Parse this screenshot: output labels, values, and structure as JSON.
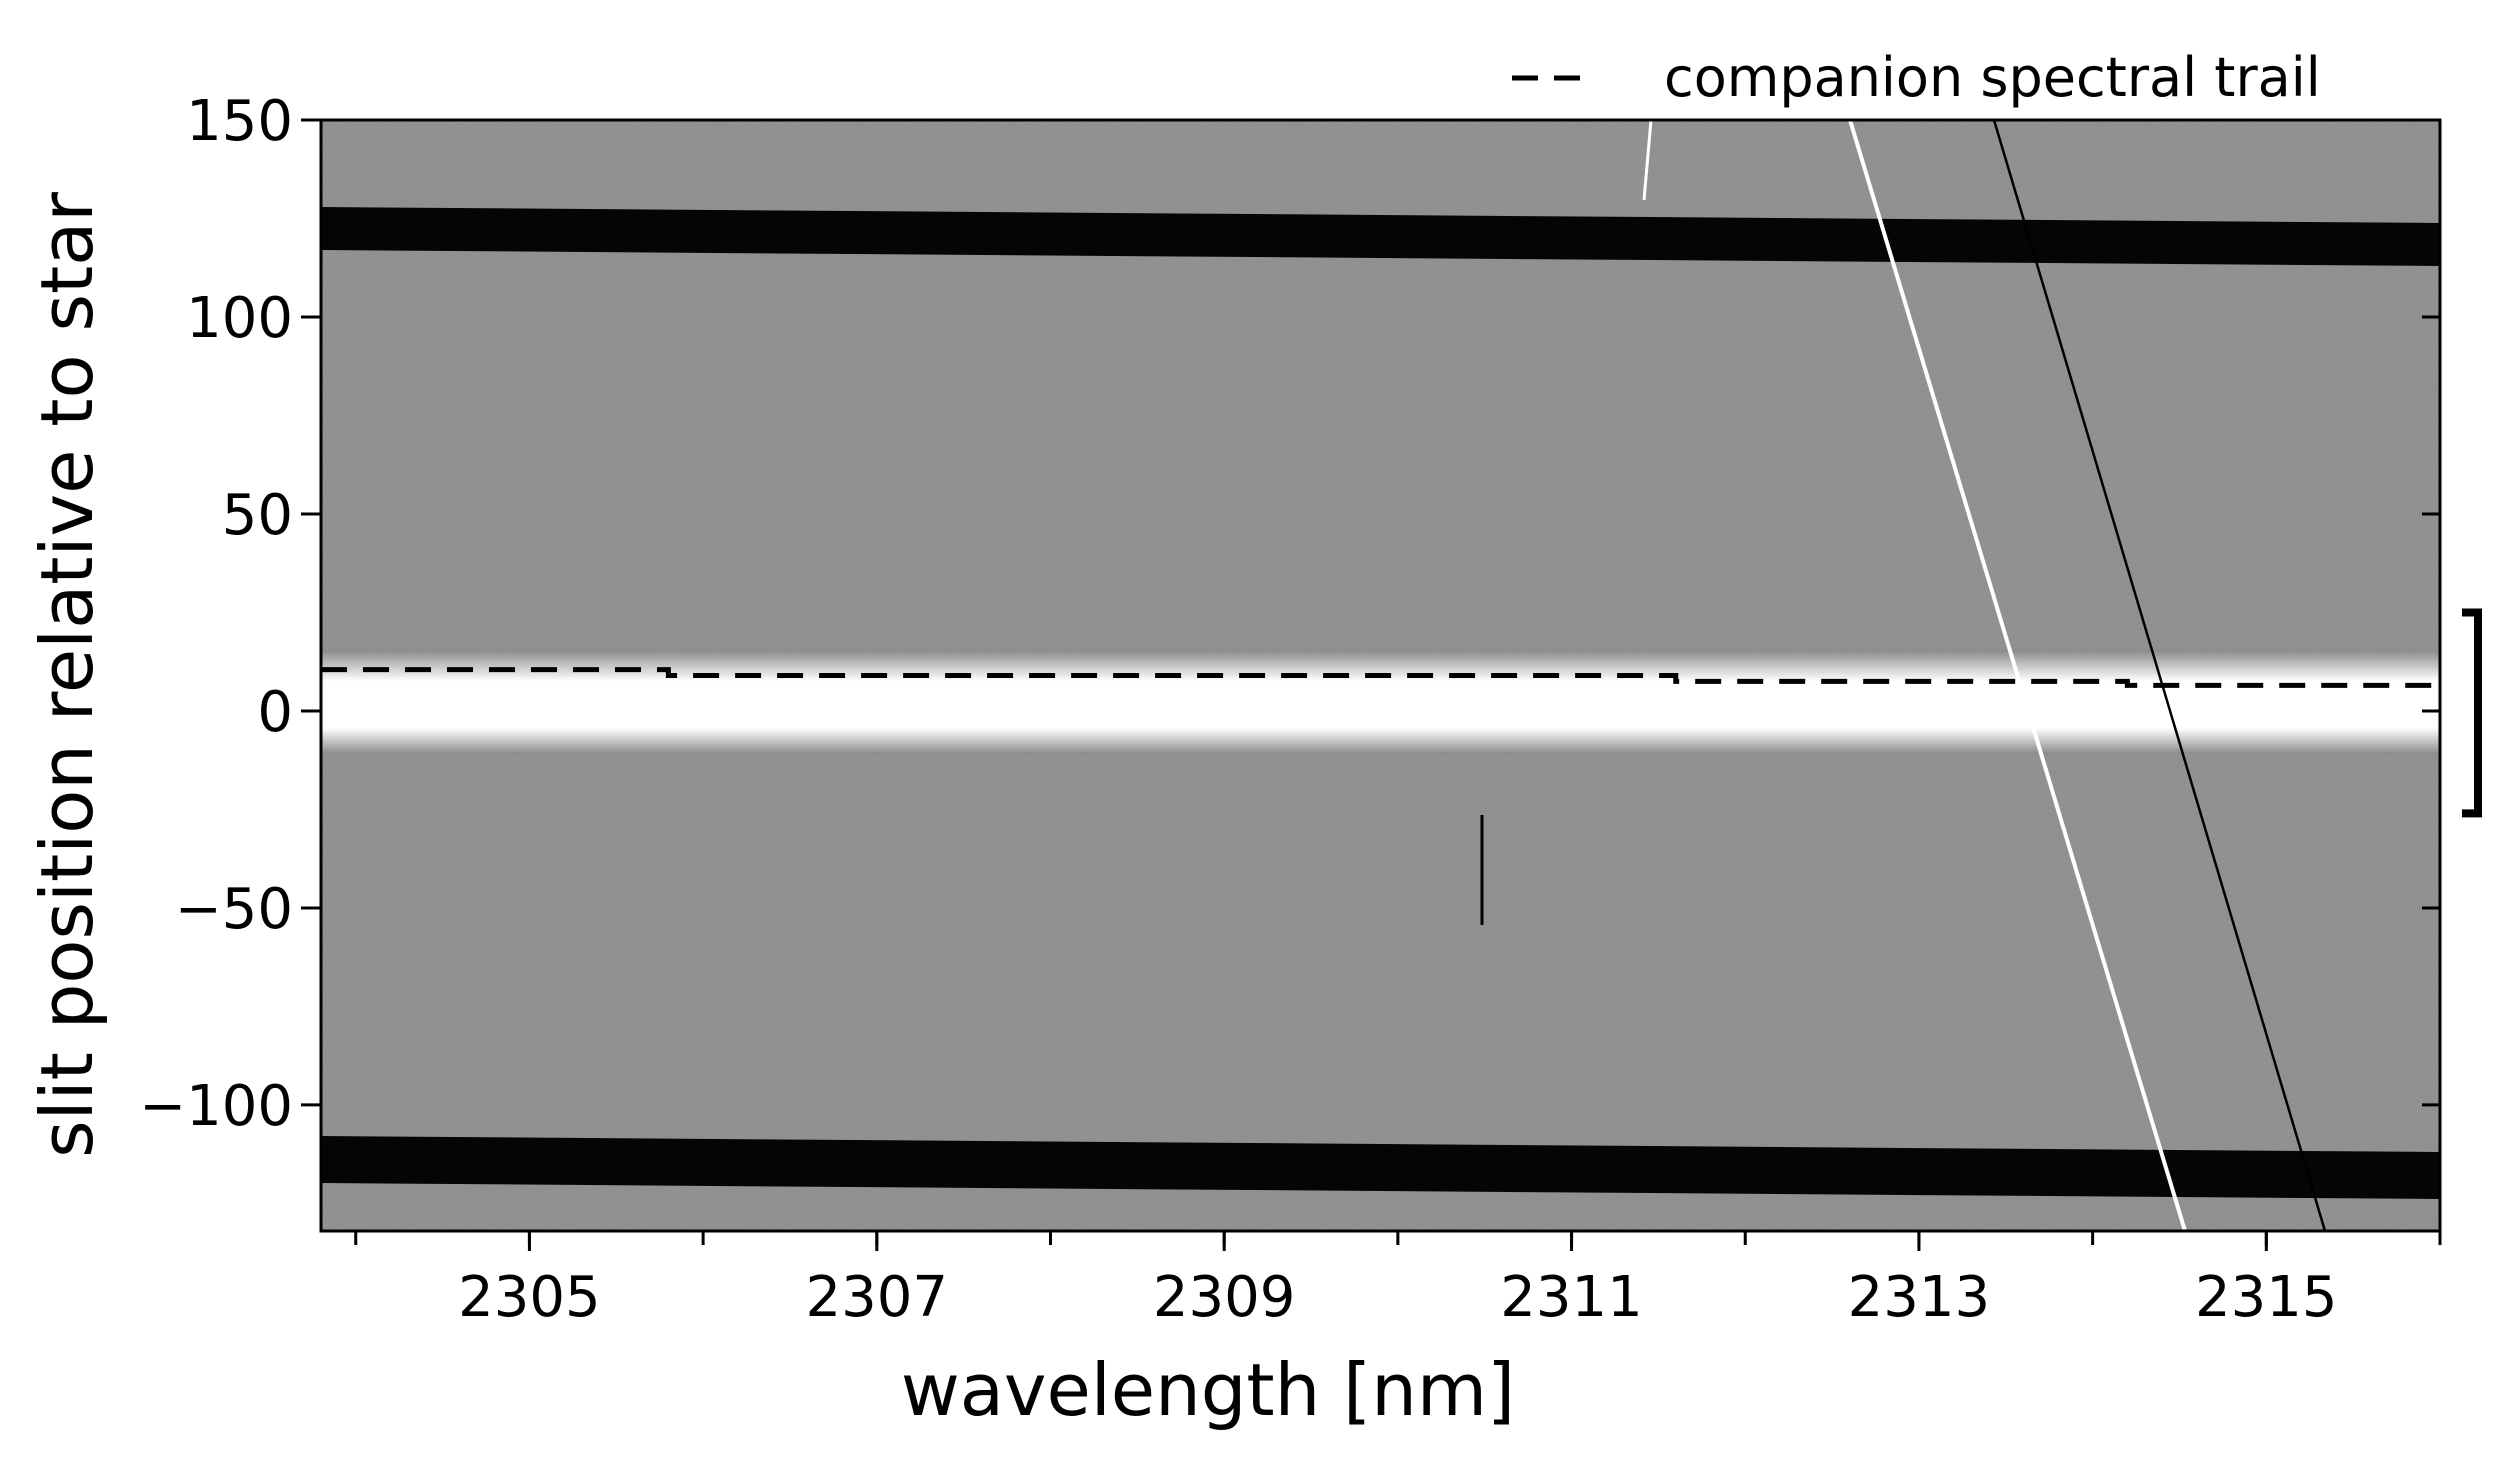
{
  "chart_data": {
    "type": "line",
    "xlabel": "wavelength [nm]",
    "ylabel": "slit position relative to star",
    "xlim": [
      2303.8,
      2316.0
    ],
    "ylim": [
      -132,
      150
    ],
    "xticks": [
      2305,
      2307,
      2309,
      2311,
      2313,
      2315
    ],
    "xminorticks": [
      2304,
      2305,
      2306,
      2307,
      2308,
      2309,
      2310,
      2311,
      2312,
      2313,
      2314,
      2315,
      2316
    ],
    "yticks": [
      {
        "value": -100,
        "label": "−100"
      },
      {
        "value": -50,
        "label": "−50"
      },
      0,
      50,
      100,
      150
    ],
    "legend": "upper right",
    "bracket": [
      -26,
      25
    ],
    "series": [
      {
        "name": "companion spectral trail",
        "color": "#000000",
        "dash": true,
        "x": [
          2303.8,
          2305.8,
          2305.8,
          2311.6,
          2311.6,
          2314.2,
          2314.2,
          2316.0
        ],
        "values": [
          10.5,
          10.5,
          9,
          9,
          7.5,
          7.5,
          6.5,
          6.5
        ]
      }
    ]
  }
}
